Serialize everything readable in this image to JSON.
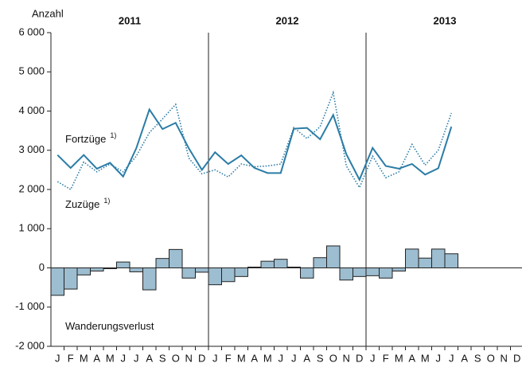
{
  "chart_data": {
    "type": "line_bar",
    "y_label": "Anzahl",
    "groups": [
      "2011",
      "2012",
      "2013"
    ],
    "categories": [
      "J",
      "F",
      "M",
      "A",
      "M",
      "J",
      "J",
      "A",
      "S",
      "O",
      "N",
      "D",
      "J",
      "F",
      "M",
      "A",
      "M",
      "J",
      "J",
      "A",
      "S",
      "O",
      "N",
      "D",
      "J",
      "F",
      "M",
      "A",
      "M",
      "J",
      "J",
      "A",
      "S",
      "O",
      "N",
      "D"
    ],
    "footnote_marker": "1)",
    "series": [
      {
        "name": "Fortzüge",
        "style": "solid",
        "color": "#2b7ca6",
        "values": [
          2880,
          2550,
          2880,
          2530,
          2680,
          2330,
          3050,
          4040,
          3540,
          3700,
          3050,
          2500,
          2950,
          2650,
          2870,
          2550,
          2420,
          2420,
          3550,
          3570,
          3280,
          3900,
          2900,
          2250,
          3060,
          2600,
          2530,
          2650,
          2380,
          2540,
          3600,
          null,
          null,
          null,
          null,
          null
        ]
      },
      {
        "name": "Zuzüge",
        "style": "dotted",
        "color": "#2b7ca6",
        "values": [
          2200,
          2000,
          2700,
          2450,
          2650,
          2450,
          2850,
          3450,
          3800,
          4170,
          2800,
          2400,
          2500,
          2320,
          2650,
          2580,
          2600,
          2650,
          3580,
          3300,
          3600,
          4470,
          2600,
          2050,
          2850,
          2300,
          2450,
          3150,
          2620,
          3000,
          3950,
          null,
          null,
          null,
          null,
          null
        ]
      },
      {
        "name": "Wanderungsverlust",
        "style": "bar",
        "color": "#9dbdd0",
        "values": [
          -700,
          -540,
          -180,
          -80,
          -20,
          150,
          -100,
          -560,
          240,
          470,
          -260,
          -110,
          -430,
          -350,
          -220,
          20,
          170,
          220,
          20,
          -260,
          260,
          560,
          -310,
          -220,
          -200,
          -260,
          -80,
          480,
          250,
          480,
          360,
          null,
          null,
          null,
          null,
          null
        ]
      }
    ],
    "ylim": [
      -2000,
      6000
    ],
    "yticks": [
      {
        "value": -2000,
        "label": "-2 000"
      },
      {
        "value": -1000,
        "label": "-1 000"
      },
      0,
      {
        "value": 1000,
        "label": "1 000"
      },
      {
        "value": 2000,
        "label": "2 000"
      },
      {
        "value": 3000,
        "label": "3 000"
      },
      {
        "value": 4000,
        "label": "4 000"
      },
      {
        "value": 5000,
        "label": "5 000"
      },
      {
        "value": 6000,
        "label": "6 000"
      }
    ]
  }
}
